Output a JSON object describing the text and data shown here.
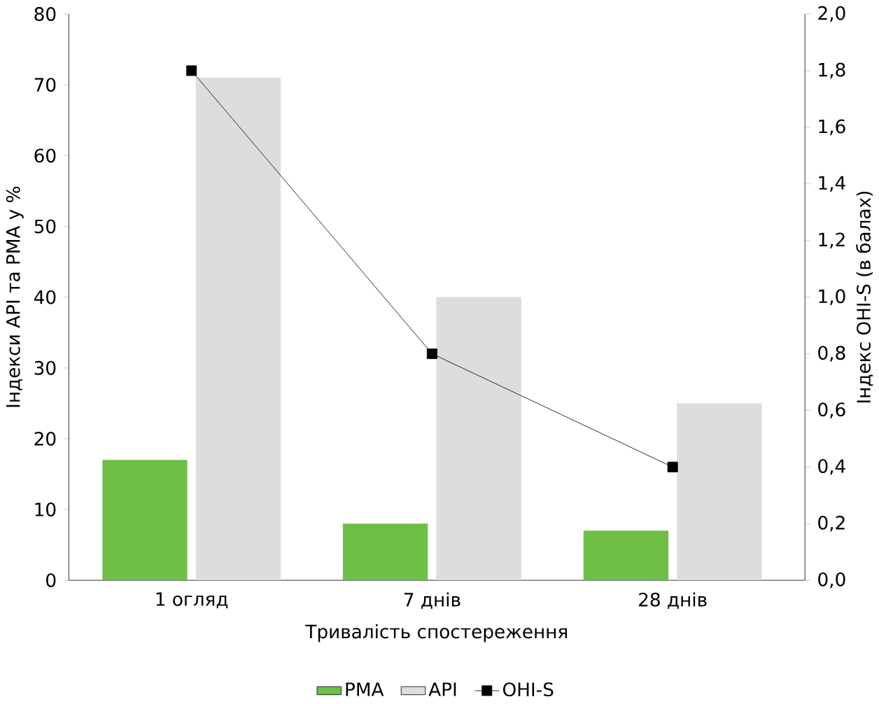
{
  "chart_data": {
    "type": "bar",
    "categories": [
      "1 огляд",
      "7 днів",
      "28 днів"
    ],
    "series": [
      {
        "name": "PMA",
        "color": "#6dbf45",
        "values": [
          17,
          8,
          7
        ]
      },
      {
        "name": "API",
        "color": "#dcdddf",
        "values": [
          71,
          40,
          25
        ]
      },
      {
        "name": "OHI-S",
        "color": "#000000",
        "type": "line",
        "axis": "y2",
        "marker": "square",
        "values": [
          1.8,
          0.8,
          0.4
        ]
      }
    ],
    "xlabel": "Тривалість спостереження",
    "ylabel": "Індекси API та PMA у %",
    "y2label": "Індекс OHI-S (в балах)",
    "ylim": [
      0,
      80
    ],
    "yticks": [
      0,
      10,
      20,
      30,
      40,
      50,
      60,
      70,
      80
    ],
    "y2lim": [
      0,
      2.0
    ],
    "y2ticks": [
      {
        "value": 0,
        "label": "0,0"
      },
      {
        "value": 0.2,
        "label": "0,2"
      },
      {
        "value": 0.4,
        "label": "0,4"
      },
      {
        "value": 0.6,
        "label": "0,6"
      },
      {
        "value": 0.8,
        "label": "0,8"
      },
      {
        "value": 1.0,
        "label": "1,0"
      },
      {
        "value": 1.2,
        "label": "1,2"
      },
      {
        "value": 1.4,
        "label": "1,4"
      },
      {
        "value": 1.6,
        "label": "1,6"
      },
      {
        "value": 1.8,
        "label": "1,8"
      },
      {
        "value": 2.0,
        "label": "2,0"
      }
    ],
    "legend": "bottom"
  }
}
